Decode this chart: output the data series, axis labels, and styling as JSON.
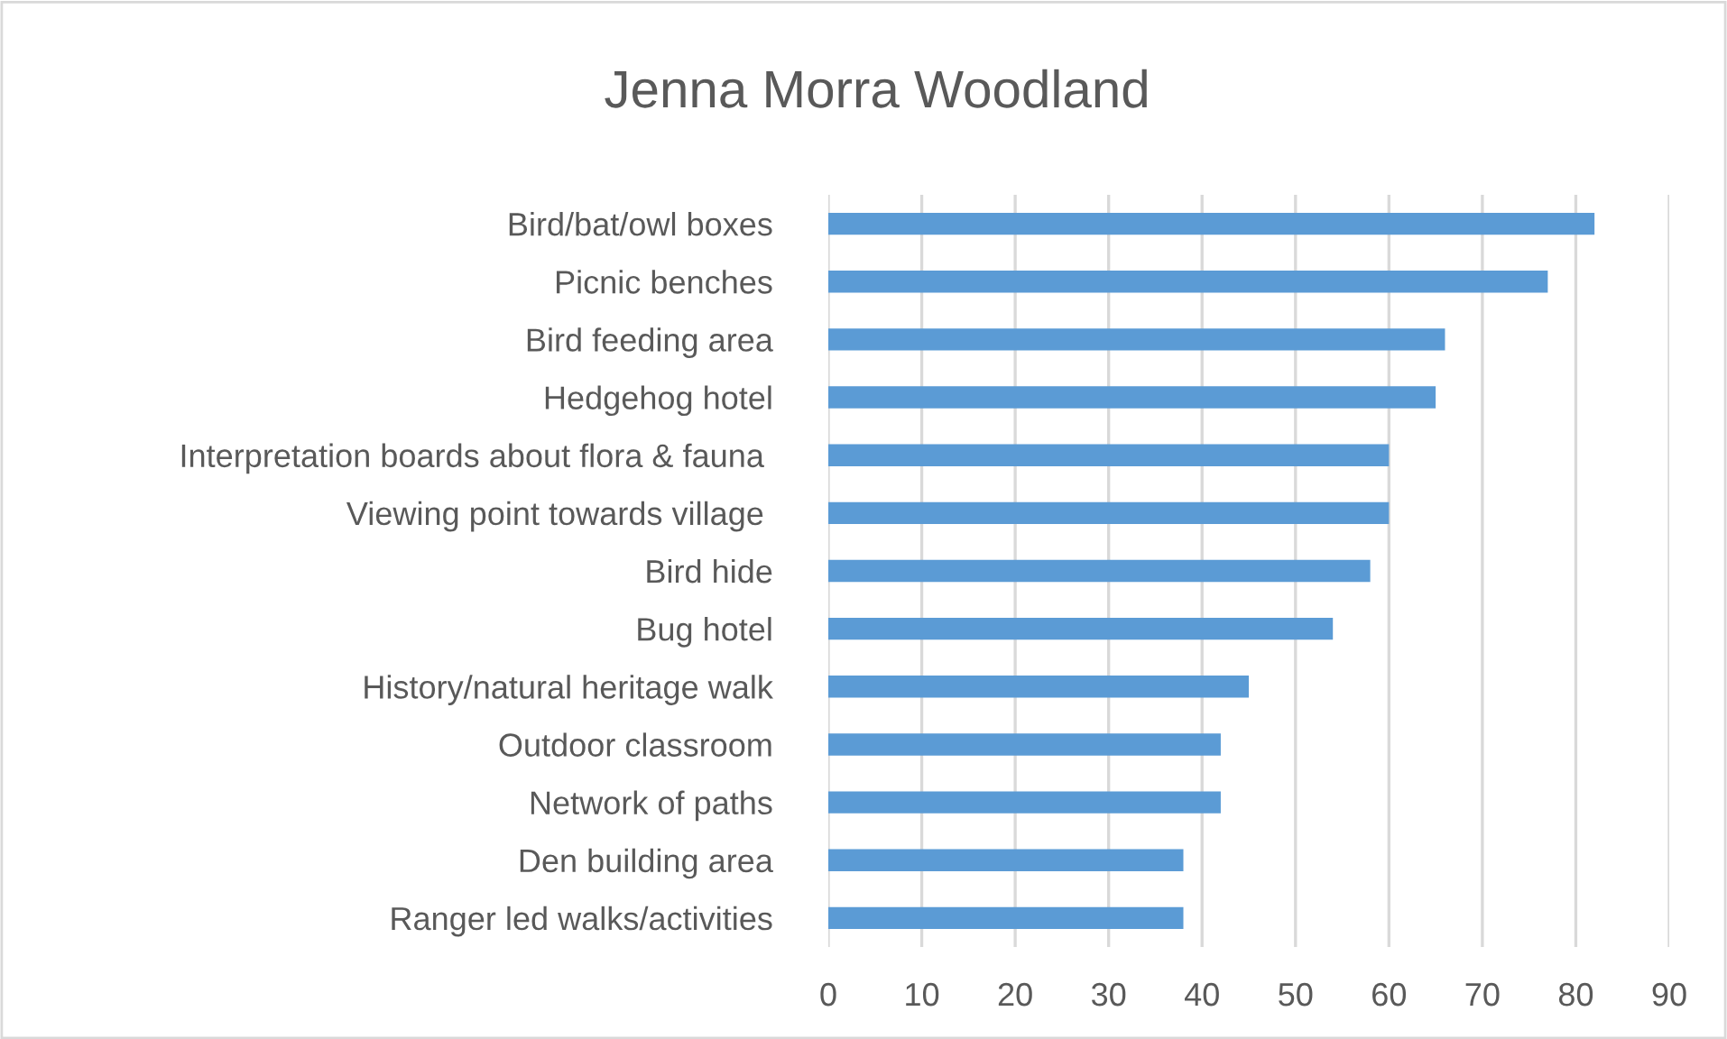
{
  "chart_data": {
    "type": "bar",
    "orientation": "horizontal",
    "title": "Jenna Morra Woodland",
    "categories": [
      "Bird/bat/owl boxes",
      "Picnic benches",
      "Bird feeding area",
      "Hedgehog hotel",
      "Interpretation boards about flora & fauna ",
      "Viewing point towards village ",
      "Bird hide",
      "Bug hotel",
      "History/natural heritage walk",
      "Outdoor classroom",
      "Network of paths",
      "Den building area",
      "Ranger led walks/activities"
    ],
    "values": [
      82,
      77,
      66,
      65,
      60,
      60,
      58,
      54,
      45,
      42,
      42,
      38,
      38
    ],
    "color": "#5b9bd5",
    "xlim": [
      0,
      90
    ],
    "xticks": [
      0,
      10,
      20,
      30,
      40,
      50,
      60,
      70,
      80,
      90
    ],
    "grid": "x"
  }
}
